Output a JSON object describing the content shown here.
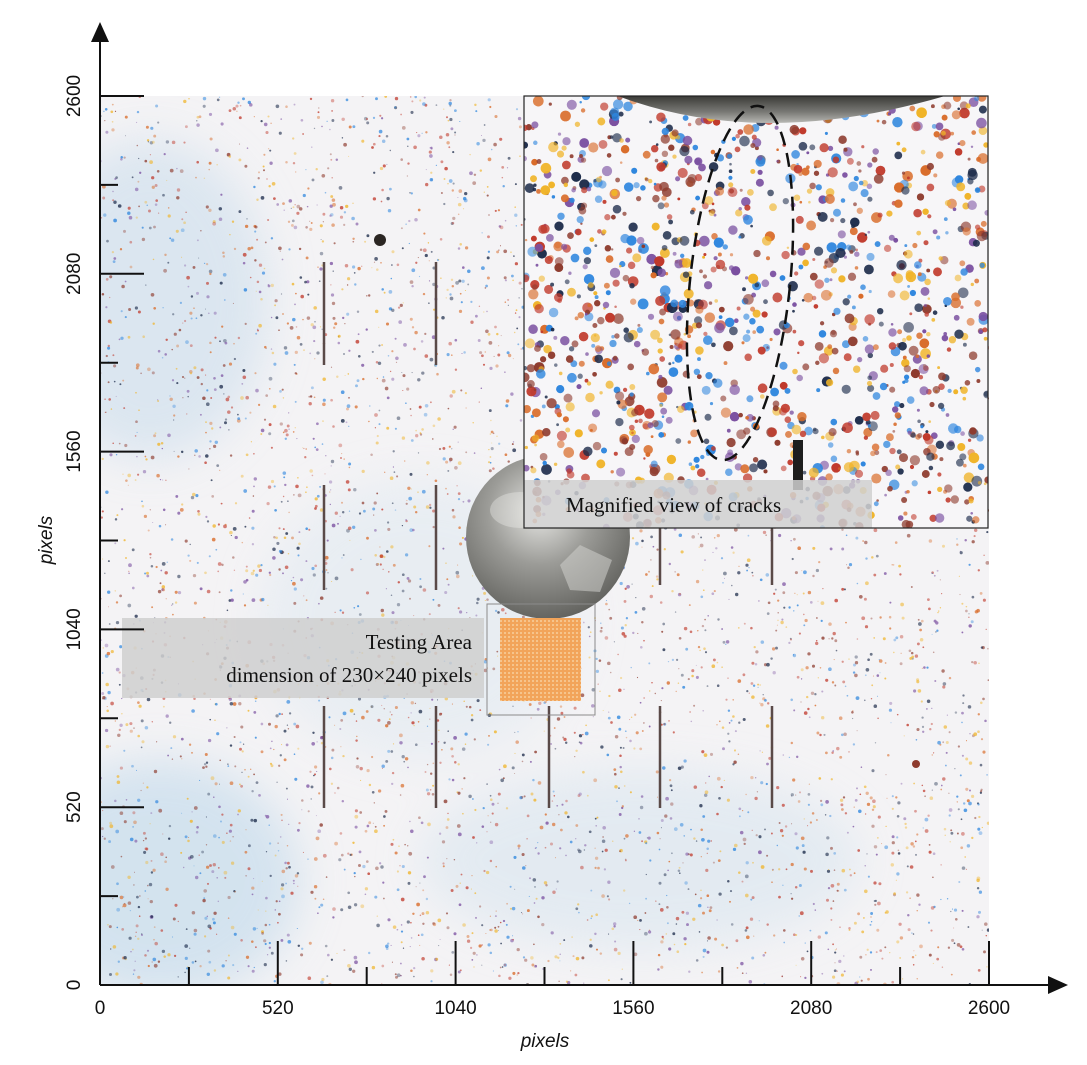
{
  "figure": {
    "x_axis": {
      "label": "pixels",
      "ticks": [
        0,
        520,
        1040,
        1560,
        2080,
        2600
      ],
      "range": [
        0,
        2600
      ]
    },
    "y_axis": {
      "label": "pixels",
      "ticks": [
        0,
        520,
        1040,
        1560,
        2080,
        2600
      ],
      "range": [
        0,
        2600
      ]
    },
    "testing_area": {
      "line1": "Testing Area",
      "line2": "dimension of 230×240 pixels",
      "color": "#f0a760"
    },
    "inset": {
      "caption": "Magnified view of cracks"
    },
    "speckle_colors": [
      "#c0392b",
      "#2e86de",
      "#f0b429",
      "#8e3b2e",
      "#1b2a49",
      "#d96c2a",
      "#7a4fa0"
    ],
    "background_tint": "#dce8f3"
  }
}
